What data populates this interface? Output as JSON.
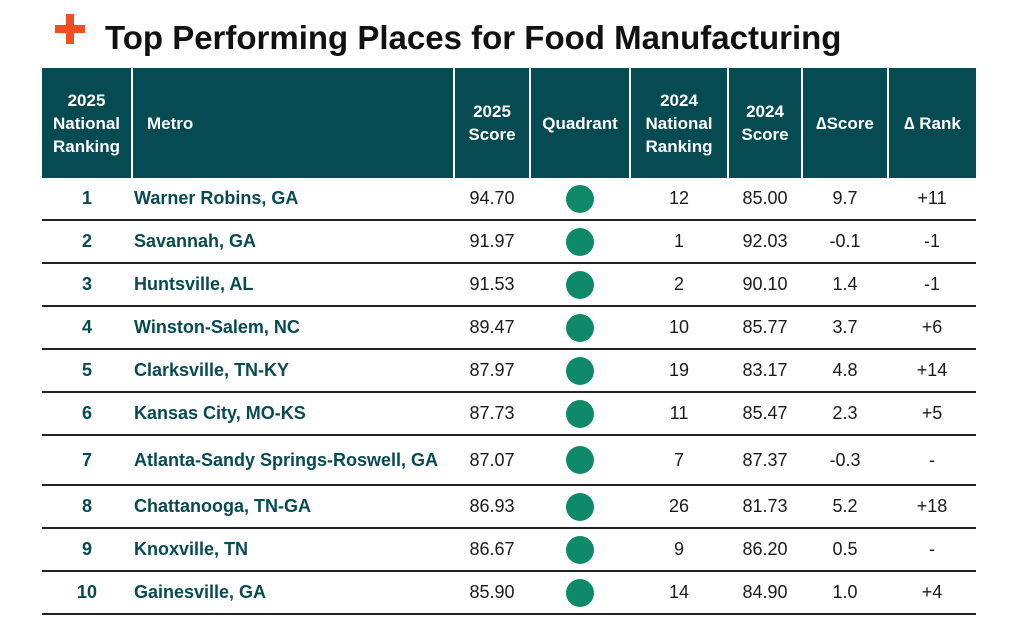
{
  "title": "Top Performing Places for Food Manufacturing",
  "colors": {
    "header_bg": "#064a52",
    "accent": "#f04e23",
    "quadrant_dot": "#0e8a6a",
    "metro_text": "#064a52"
  },
  "headers": {
    "rank_2025": "2025 National Ranking",
    "metro": "Metro",
    "score_2025": "2025 Score",
    "quadrant": "Quadrant",
    "rank_2024": "2024 National Ranking",
    "score_2024": "2024 Score",
    "delta_score": "∆Score",
    "delta_rank": "∆ Rank"
  },
  "rows": [
    {
      "rank": "1",
      "metro": "Warner Robins, GA",
      "score_2025": "94.70",
      "rank_2024": "12",
      "score_2024": "85.00",
      "delta_score": "9.7",
      "delta_rank": "+11"
    },
    {
      "rank": "2",
      "metro": "Savannah, GA",
      "score_2025": "91.97",
      "rank_2024": "1",
      "score_2024": "92.03",
      "delta_score": "-0.1",
      "delta_rank": "-1"
    },
    {
      "rank": "3",
      "metro": "Huntsville, AL",
      "score_2025": "91.53",
      "rank_2024": "2",
      "score_2024": "90.10",
      "delta_score": "1.4",
      "delta_rank": "-1"
    },
    {
      "rank": "4",
      "metro": "Winston-Salem, NC",
      "score_2025": "89.47",
      "rank_2024": "10",
      "score_2024": "85.77",
      "delta_score": "3.7",
      "delta_rank": "+6"
    },
    {
      "rank": "5",
      "metro": "Clarksville, TN-KY",
      "score_2025": "87.97",
      "rank_2024": "19",
      "score_2024": "83.17",
      "delta_score": "4.8",
      "delta_rank": "+14"
    },
    {
      "rank": "6",
      "metro": "Kansas City, MO-KS",
      "score_2025": "87.73",
      "rank_2024": "11",
      "score_2024": "85.47",
      "delta_score": "2.3",
      "delta_rank": "+5"
    },
    {
      "rank": "7",
      "metro": "Atlanta-Sandy Springs-Roswell, GA",
      "score_2025": "87.07",
      "rank_2024": "7",
      "score_2024": "87.37",
      "delta_score": "-0.3",
      "delta_rank": "-"
    },
    {
      "rank": "8",
      "metro": "Chattanooga, TN-GA",
      "score_2025": "86.93",
      "rank_2024": "26",
      "score_2024": "81.73",
      "delta_score": "5.2",
      "delta_rank": "+18"
    },
    {
      "rank": "9",
      "metro": "Knoxville, TN",
      "score_2025": "86.67",
      "rank_2024": "9",
      "score_2024": "86.20",
      "delta_score": "0.5",
      "delta_rank": "-"
    },
    {
      "rank": "10",
      "metro": "Gainesville, GA",
      "score_2025": "85.90",
      "rank_2024": "14",
      "score_2024": "84.90",
      "delta_score": "1.0",
      "delta_rank": "+4"
    }
  ]
}
